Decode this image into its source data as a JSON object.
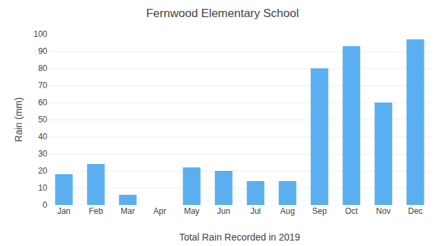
{
  "chart_data": {
    "type": "bar",
    "title": "Fernwood Elementary School",
    "xlabel": "Total Rain Recorded in 2019",
    "ylabel": "Rain (mm)",
    "categories": [
      "Jan",
      "Feb",
      "Mar",
      "Apr",
      "May",
      "Jun",
      "Jul",
      "Aug",
      "Sep",
      "Oct",
      "Nov",
      "Dec"
    ],
    "values": [
      18,
      24,
      6,
      0,
      22,
      20,
      14,
      14,
      80,
      93,
      60,
      97
    ],
    "color": "#5aaff0",
    "ylim": [
      0,
      100
    ],
    "yticks": [
      0,
      10,
      20,
      30,
      40,
      50,
      60,
      70,
      80,
      90,
      100
    ],
    "grid": true
  }
}
